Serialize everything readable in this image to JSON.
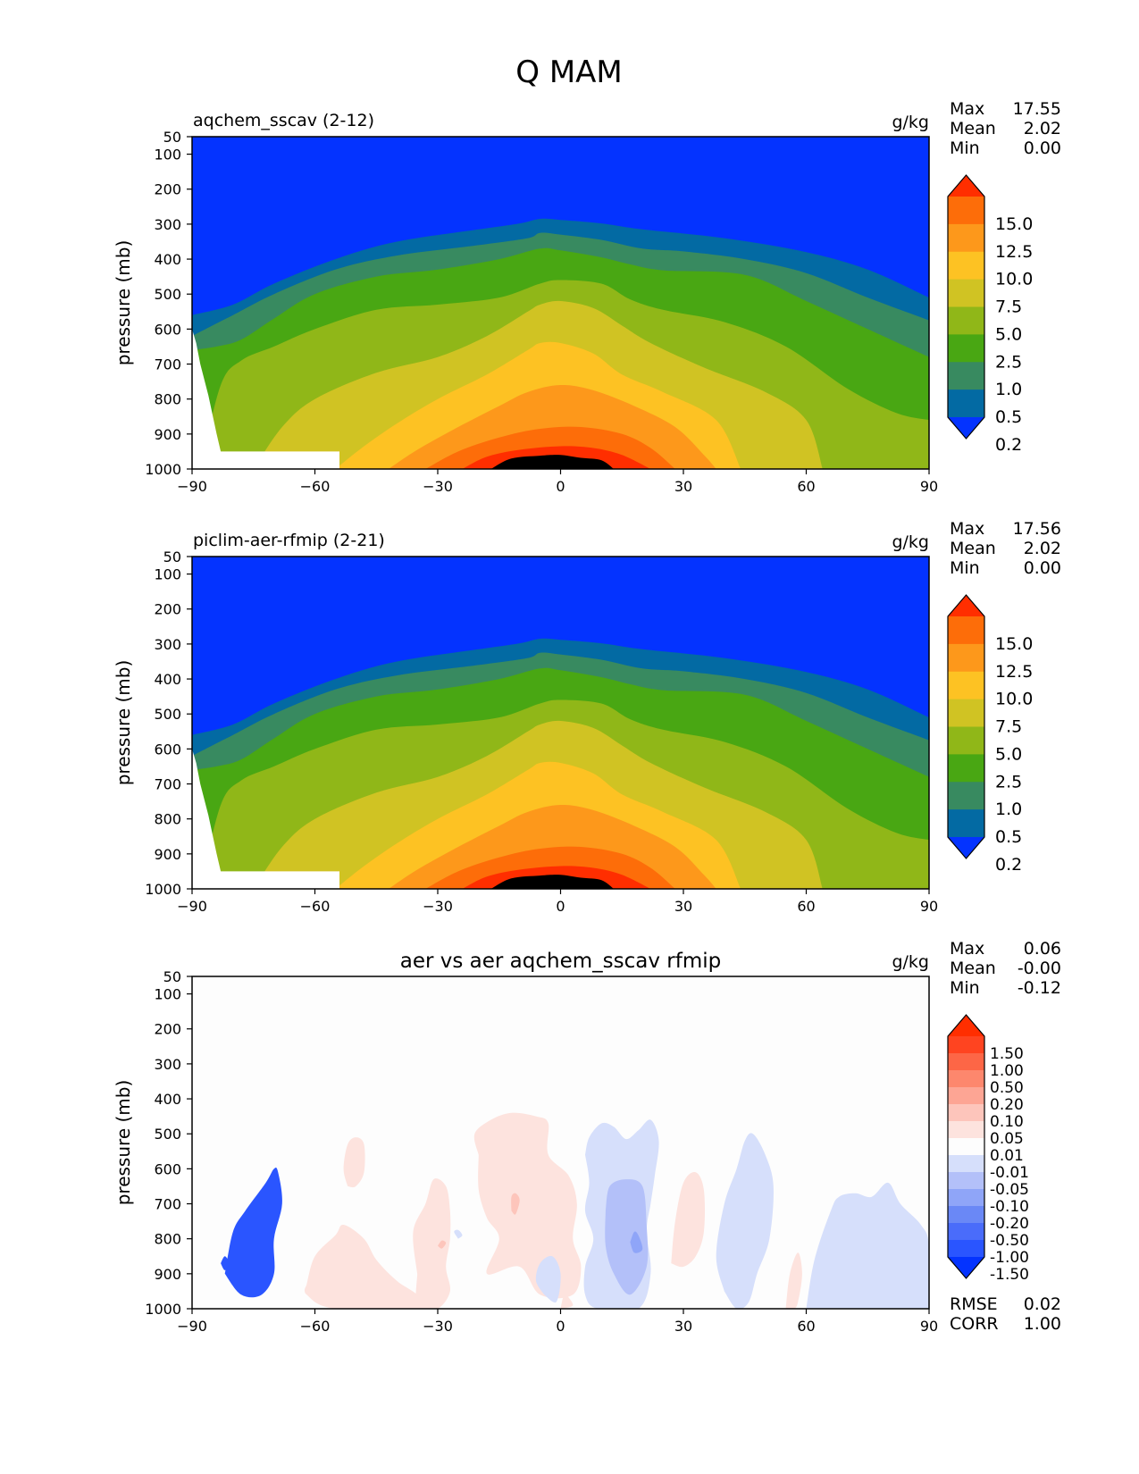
{
  "title": "Q MAM",
  "y_ticks": [
    "50",
    "100",
    "200",
    "300",
    "400",
    "500",
    "600",
    "700",
    "800",
    "900",
    "1000"
  ],
  "x_ticks": [
    "−90",
    "−60",
    "−30",
    "0",
    "30",
    "60",
    "90"
  ],
  "chart_data": [
    {
      "type": "contour",
      "name": "aqchem_sscav (2-12)",
      "units": "g/kg",
      "ylabel": "pressure (mb)",
      "x_range": [
        -90,
        90
      ],
      "y_range": [
        50,
        1000
      ],
      "y_inverted": true,
      "stats": [
        {
          "label": "Max",
          "value": "17.55"
        },
        {
          "label": "Mean",
          "value": "2.02"
        },
        {
          "label": "Min",
          "value": "0.00"
        }
      ],
      "colorbar": {
        "extend": "both",
        "tick_labels": [
          "15.0",
          "12.5",
          "10.0",
          "7.5",
          "5.0",
          "2.5",
          "1.0",
          "0.5",
          "0.2"
        ],
        "levels": [
          0.2,
          0.5,
          1.0,
          2.5,
          5.0,
          7.5,
          10.0,
          12.5,
          15.0
        ],
        "colors": [
          "#0433ff",
          "#036aa3",
          "#388a60",
          "#49a713",
          "#90b718",
          "#d0c323",
          "#fdc223",
          "#fd981b",
          "#fd6d09",
          "#ff2e00"
        ]
      }
    },
    {
      "type": "contour",
      "name": "piclim-aer-rfmip (2-21)",
      "units": "g/kg",
      "ylabel": "pressure (mb)",
      "x_range": [
        -90,
        90
      ],
      "y_range": [
        50,
        1000
      ],
      "y_inverted": true,
      "stats": [
        {
          "label": "Max",
          "value": "17.56"
        },
        {
          "label": "Mean",
          "value": "2.02"
        },
        {
          "label": "Min",
          "value": "0.00"
        }
      ],
      "colorbar": {
        "extend": "both",
        "tick_labels": [
          "15.0",
          "12.5",
          "10.0",
          "7.5",
          "5.0",
          "2.5",
          "1.0",
          "0.5",
          "0.2"
        ],
        "levels": [
          0.2,
          0.5,
          1.0,
          2.5,
          5.0,
          7.5,
          10.0,
          12.5,
          15.0
        ],
        "colors": [
          "#0433ff",
          "#036aa3",
          "#388a60",
          "#49a713",
          "#90b718",
          "#d0c323",
          "#fdc223",
          "#fd981b",
          "#fd6d09",
          "#ff2e00"
        ]
      }
    },
    {
      "type": "contour",
      "name": "aer vs aer aqchem_sscav rfmip",
      "units": "g/kg",
      "ylabel": "pressure (mb)",
      "x_range": [
        -90,
        90
      ],
      "y_range": [
        50,
        1000
      ],
      "y_inverted": true,
      "stats": [
        {
          "label": "Max",
          "value": "0.06"
        },
        {
          "label": "Mean",
          "value": "-0.00"
        },
        {
          "label": "Min",
          "value": "-0.12"
        }
      ],
      "extra_stats": [
        {
          "label": "RMSE",
          "value": "0.02"
        },
        {
          "label": "CORR",
          "value": "1.00"
        }
      ],
      "colorbar": {
        "extend": "both",
        "tick_labels": [
          "1.50",
          "1.00",
          "0.50",
          "0.20",
          "0.10",
          "0.05",
          "0.01",
          "-0.01",
          "-0.05",
          "-0.10",
          "-0.20",
          "-0.50",
          "-1.00",
          "-1.50"
        ],
        "levels": [
          -1.5,
          -1.0,
          -0.5,
          -0.2,
          -0.1,
          -0.05,
          -0.01,
          0.01,
          0.05,
          0.1,
          0.2,
          0.5,
          1.0,
          1.5
        ],
        "colors": [
          "#0433ff",
          "#2a55ff",
          "#4a6cfa",
          "#6a88f6",
          "#8fa5f8",
          "#b3c0f9",
          "#d6dffb",
          "#fdfdfd",
          "#fde3de",
          "#fdc5bb",
          "#fda594",
          "#fd876d",
          "#fd6646",
          "#ff4420",
          "#ff2e00"
        ]
      }
    }
  ]
}
